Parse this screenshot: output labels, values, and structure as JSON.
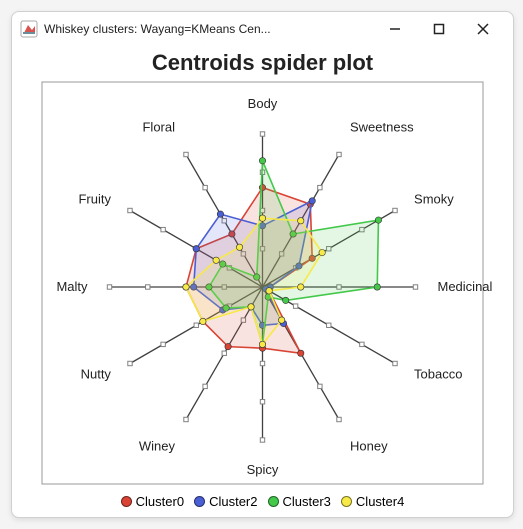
{
  "window": {
    "title": "Whiskey clusters: Wayang=KMeans Cen...",
    "minimize_tooltip": "Minimize",
    "maximize_tooltip": "Maximize",
    "close_tooltip": "Close"
  },
  "chart": {
    "title": "Centroids spider plot",
    "type": "radar",
    "background_color": "#ffffff",
    "border_color": "#999999",
    "axes": [
      "Body",
      "Sweetness",
      "Smoky",
      "Medicinal",
      "Tobacco",
      "Honey",
      "Spicy",
      "Winey",
      "Nutty",
      "Malty",
      "Fruity",
      "Floral"
    ],
    "axis_label_fontsize": 13,
    "axis_color": "#404040",
    "axis_max": 4,
    "tick_marker_color": "#808080",
    "series": [
      {
        "name": "Cluster0",
        "color": "#d94435",
        "fill_opacity": 0.15,
        "values": [
          2.6,
          2.5,
          1.5,
          0.2,
          0.2,
          2.0,
          1.6,
          1.8,
          1.8,
          2.0,
          2.0,
          1.6
        ]
      },
      {
        "name": "Cluster2",
        "color": "#4a5fd4",
        "fill_opacity": 0.15,
        "values": [
          1.6,
          2.6,
          1.1,
          0.2,
          0.1,
          1.1,
          1.0,
          0.6,
          1.2,
          1.8,
          2.0,
          2.2
        ]
      },
      {
        "name": "Cluster3",
        "color": "#43c84a",
        "fill_opacity": 0.15,
        "values": [
          3.3,
          1.6,
          3.5,
          3.0,
          0.7,
          0.3,
          1.5,
          0.6,
          1.1,
          1.4,
          1.2,
          0.3
        ]
      },
      {
        "name": "Cluster4",
        "color": "#f7e948",
        "fill_opacity": 0.15,
        "values": [
          1.8,
          2.0,
          1.8,
          1.0,
          0.2,
          1.0,
          1.5,
          0.6,
          1.8,
          2.0,
          1.4,
          1.2
        ]
      }
    ]
  }
}
